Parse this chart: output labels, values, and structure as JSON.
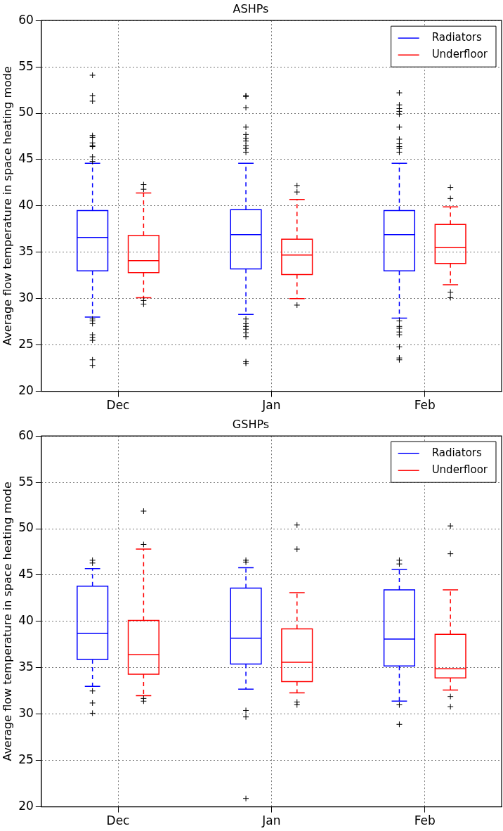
{
  "chart_data": [
    {
      "type": "box",
      "title": "ASHPs",
      "ylabel": "Average flow temperature in space heating mode",
      "categories": [
        "Dec",
        "Jan",
        "Feb"
      ],
      "ylim": [
        20,
        60
      ],
      "yticks": [
        20,
        25,
        30,
        35,
        40,
        45,
        50,
        55,
        60
      ],
      "grid": true,
      "legend": "top right",
      "marker": "cross",
      "series": [
        {
          "name": "Radiators",
          "color": "#0000ff",
          "boxes": [
            {
              "low": 28.0,
              "q1": 33.0,
              "median": 36.6,
              "q3": 39.5,
              "high": 44.6,
              "outliers": [
                54.1,
                51.9,
                51.3,
                47.6,
                47.4,
                46.8,
                46.5,
                46.4,
                45.3,
                44.8,
                27.8,
                27.6,
                27.3,
                26.1,
                25.8,
                25.5,
                23.4,
                22.8
              ]
            },
            {
              "low": 28.3,
              "q1": 33.2,
              "median": 36.9,
              "q3": 39.6,
              "high": 44.6,
              "outliers": [
                51.9,
                51.8,
                50.6,
                48.5,
                47.7,
                47.3,
                47.0,
                46.5,
                46.2,
                45.8,
                27.8,
                27.3,
                27.0,
                26.7,
                26.3,
                25.9,
                23.2,
                23.0
              ]
            },
            {
              "low": 27.9,
              "q1": 33.0,
              "median": 36.9,
              "q3": 39.5,
              "high": 44.6,
              "outliers": [
                52.2,
                50.9,
                50.5,
                50.2,
                49.9,
                48.5,
                47.2,
                46.7,
                46.4,
                46.2,
                45.8,
                27.6,
                27.0,
                26.8,
                26.4,
                26.1,
                24.8,
                23.6,
                23.4
              ]
            }
          ]
        },
        {
          "name": "Underfloor",
          "color": "#ff0000",
          "boxes": [
            {
              "low": 30.1,
              "q1": 32.8,
              "median": 34.1,
              "q3": 36.8,
              "high": 41.4,
              "outliers": [
                42.3,
                41.8,
                29.8,
                29.4
              ]
            },
            {
              "low": 30.0,
              "q1": 32.6,
              "median": 34.7,
              "q3": 36.4,
              "high": 40.7,
              "outliers": [
                42.2,
                41.5,
                29.3
              ]
            },
            {
              "low": 31.5,
              "q1": 33.8,
              "median": 35.5,
              "q3": 38.0,
              "high": 39.9,
              "outliers": [
                42.0,
                40.8,
                30.7,
                30.1
              ]
            }
          ]
        }
      ]
    },
    {
      "type": "box",
      "title": "GSHPs",
      "ylabel": "Average flow temperature in space heating mode",
      "categories": [
        "Dec",
        "Jan",
        "Feb"
      ],
      "ylim": [
        20,
        60
      ],
      "yticks": [
        20,
        25,
        30,
        35,
        40,
        45,
        50,
        55,
        60
      ],
      "grid": true,
      "legend": "top right",
      "marker": "cross",
      "series": [
        {
          "name": "Radiators",
          "color": "#0000ff",
          "boxes": [
            {
              "low": 33.0,
              "q1": 35.9,
              "median": 38.7,
              "q3": 43.8,
              "high": 45.7,
              "outliers": [
                46.6,
                46.3,
                32.5,
                31.2,
                30.1
              ]
            },
            {
              "low": 32.7,
              "q1": 35.4,
              "median": 38.2,
              "q3": 43.6,
              "high": 45.8,
              "outliers": [
                46.6,
                46.4,
                30.4,
                29.7,
                20.9
              ]
            },
            {
              "low": 31.4,
              "q1": 35.2,
              "median": 38.1,
              "q3": 43.4,
              "high": 45.6,
              "outliers": [
                46.6,
                46.2,
                31.0,
                28.9
              ]
            }
          ]
        },
        {
          "name": "Underfloor",
          "color": "#ff0000",
          "boxes": [
            {
              "low": 32.0,
              "q1": 34.3,
              "median": 36.4,
              "q3": 40.1,
              "high": 47.8,
              "outliers": [
                51.9,
                48.3,
                31.7,
                31.4
              ]
            },
            {
              "low": 32.3,
              "q1": 33.5,
              "median": 35.6,
              "q3": 39.2,
              "high": 43.1,
              "outliers": [
                50.4,
                47.8,
                31.3,
                31.0
              ]
            },
            {
              "low": 32.6,
              "q1": 33.9,
              "median": 34.9,
              "q3": 38.6,
              "high": 43.4,
              "outliers": [
                50.3,
                47.3,
                31.9,
                30.8
              ]
            }
          ]
        }
      ]
    }
  ]
}
